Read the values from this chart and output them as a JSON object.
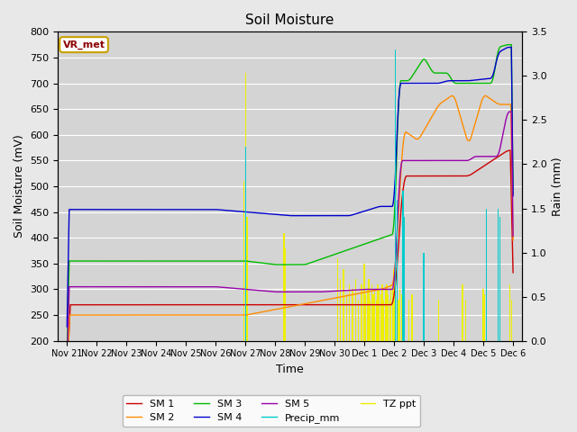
{
  "title": "Soil Moisture",
  "xlabel": "Time",
  "ylabel_left": "Soil Moisture (mV)",
  "ylabel_right": "Rain (mm)",
  "ylim_left": [
    200,
    800
  ],
  "ylim_right": [
    0.0,
    3.5
  ],
  "yticks_left": [
    200,
    250,
    300,
    350,
    400,
    450,
    500,
    550,
    600,
    650,
    700,
    750,
    800
  ],
  "yticks_right": [
    0.0,
    0.5,
    1.0,
    1.5,
    2.0,
    2.5,
    3.0,
    3.5
  ],
  "x_tick_labels": [
    "Nov 21",
    "Nov 22",
    "Nov 23",
    "Nov 24",
    "Nov 25",
    "Nov 26",
    "Nov 27",
    "Nov 28",
    "Nov 29",
    "Nov 30",
    "Dec 1",
    "Dec 2",
    "Dec 3",
    "Dec 4",
    "Dec 5",
    "Dec 6"
  ],
  "bg_color": "#e8e8e8",
  "plot_bg_color": "#d4d4d4",
  "legend_box_color": "#c8a000",
  "legend_box_text": "VR_met",
  "line_colors": {
    "SM1": "#cc0000",
    "SM2": "#ff8c00",
    "SM3": "#00bb00",
    "SM4": "#0000cc",
    "SM5": "#9900aa",
    "Precip_mm": "#00cccc",
    "TZ_ppt": "#eeee00"
  }
}
